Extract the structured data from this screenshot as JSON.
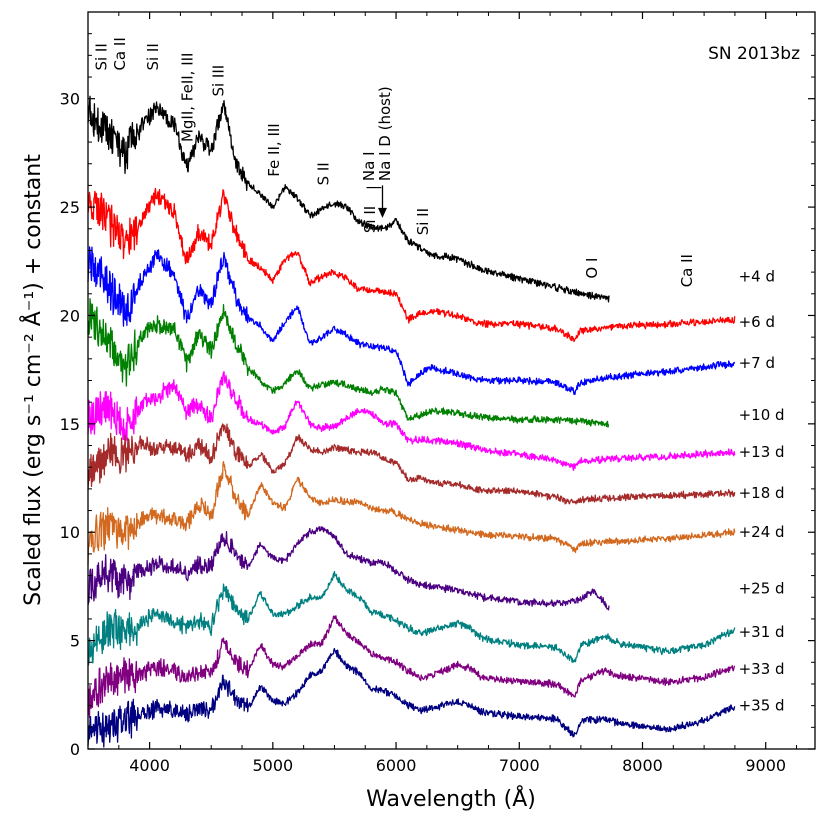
{
  "chart_data": {
    "type": "line",
    "title": "SN 2013bz",
    "xlabel": "Wavelength (Å)",
    "ylabel": "Scaled flux (erg s⁻¹ cm⁻² Å⁻¹) + constant",
    "xlim": [
      3500,
      9400
    ],
    "ylim": [
      0,
      34
    ],
    "xticks": [
      4000,
      5000,
      6000,
      7000,
      8000,
      9000
    ],
    "yticks": [
      0,
      5,
      10,
      15,
      20,
      25,
      30
    ],
    "grid": false,
    "series": [
      {
        "name": "+4 d",
        "color": "#000000",
        "x_range": [
          3500,
          7730
        ],
        "x": [
          3500,
          3650,
          3800,
          3950,
          4050,
          4200,
          4300,
          4400,
          4500,
          4600,
          4700,
          4800,
          4900,
          5000,
          5100,
          5200,
          5300,
          5400,
          5500,
          5600,
          5700,
          5800,
          5900,
          6000,
          6100,
          6200,
          6300,
          6500,
          6700,
          7000,
          7300,
          7500,
          7730
        ],
        "y": [
          29.5,
          28.5,
          27.5,
          28.8,
          29.6,
          28.8,
          26.8,
          28.3,
          27.6,
          29.8,
          27.0,
          26.1,
          25.6,
          25.0,
          25.9,
          25.4,
          24.6,
          24.9,
          25.2,
          25.0,
          24.3,
          24.1,
          24.0,
          24.4,
          23.4,
          23.1,
          22.8,
          22.6,
          22.1,
          21.7,
          21.3,
          21.0,
          20.8
        ]
      },
      {
        "name": "+6 d",
        "color": "#ff0000",
        "x_range": [
          3500,
          8750
        ],
        "x": [
          3500,
          3650,
          3800,
          3950,
          4050,
          4200,
          4300,
          4400,
          4500,
          4600,
          4700,
          4800,
          4900,
          5000,
          5100,
          5200,
          5300,
          5400,
          5500,
          5600,
          5700,
          5800,
          5900,
          6000,
          6100,
          6200,
          6300,
          6500,
          6700,
          7000,
          7300,
          7450,
          7500,
          7800,
          8200,
          8750
        ],
        "y": [
          25.2,
          24.5,
          23.2,
          24.6,
          25.6,
          24.8,
          22.5,
          23.9,
          23.2,
          25.6,
          23.8,
          22.6,
          22.2,
          21.6,
          22.6,
          22.9,
          21.5,
          21.8,
          22.0,
          21.7,
          21.2,
          21.2,
          21.1,
          21.0,
          19.8,
          20.1,
          20.2,
          20.0,
          19.6,
          19.6,
          19.4,
          18.9,
          19.3,
          19.5,
          19.6,
          19.8
        ]
      },
      {
        "name": "+7 d",
        "color": "#0000ff",
        "x_range": [
          3500,
          8750
        ],
        "x": [
          3500,
          3650,
          3800,
          3950,
          4050,
          4200,
          4300,
          4400,
          4500,
          4600,
          4700,
          4800,
          4900,
          5000,
          5100,
          5200,
          5300,
          5400,
          5500,
          5600,
          5700,
          5800,
          5900,
          6000,
          6100,
          6200,
          6300,
          6500,
          6700,
          7000,
          7300,
          7450,
          7500,
          7800,
          8200,
          8750
        ],
        "y": [
          22.5,
          21.5,
          20.0,
          21.8,
          22.7,
          21.9,
          19.8,
          21.2,
          20.5,
          22.8,
          20.8,
          19.9,
          19.5,
          18.8,
          19.7,
          20.4,
          18.7,
          19.0,
          19.4,
          19.1,
          18.7,
          18.6,
          18.5,
          18.4,
          16.8,
          17.4,
          17.6,
          17.3,
          17.0,
          17.0,
          16.9,
          16.5,
          16.9,
          17.2,
          17.4,
          17.8
        ]
      },
      {
        "name": "+10 d",
        "color": "#008000",
        "x_range": [
          3500,
          7730
        ],
        "x": [
          3500,
          3650,
          3800,
          3950,
          4050,
          4200,
          4300,
          4400,
          4500,
          4600,
          4700,
          4800,
          4900,
          5000,
          5100,
          5200,
          5300,
          5400,
          5500,
          5600,
          5700,
          5800,
          5900,
          6000,
          6100,
          6200,
          6300,
          6500,
          6700,
          7000,
          7300,
          7500,
          7730
        ],
        "y": [
          20.0,
          19.0,
          17.5,
          19.2,
          19.6,
          19.4,
          17.8,
          19.1,
          18.4,
          20.1,
          18.7,
          17.6,
          17.0,
          16.5,
          16.9,
          17.5,
          16.6,
          16.8,
          16.9,
          16.8,
          16.6,
          16.4,
          16.6,
          16.4,
          15.2,
          15.4,
          15.6,
          15.5,
          15.3,
          15.2,
          15.2,
          15.1,
          15.0
        ]
      },
      {
        "name": "+13 d",
        "color": "#ff00ff",
        "x_range": [
          3500,
          8750
        ],
        "x": [
          3500,
          3650,
          3800,
          3950,
          4050,
          4200,
          4300,
          4400,
          4500,
          4600,
          4700,
          4800,
          4900,
          5000,
          5100,
          5200,
          5300,
          5400,
          5500,
          5600,
          5700,
          5800,
          5900,
          6000,
          6100,
          6200,
          6300,
          6500,
          6700,
          7000,
          7300,
          7450,
          7500,
          7800,
          8200,
          8750
        ],
        "y": [
          15.2,
          15.8,
          14.7,
          16.0,
          16.2,
          16.8,
          15.6,
          15.9,
          15.2,
          17.3,
          16.2,
          15.2,
          15.0,
          14.6,
          14.9,
          16.1,
          15.0,
          14.8,
          14.9,
          15.3,
          15.6,
          15.5,
          15.0,
          15.0,
          14.2,
          14.3,
          14.2,
          14.1,
          13.8,
          13.6,
          13.3,
          13.0,
          13.3,
          13.4,
          13.5,
          13.7
        ]
      },
      {
        "name": "+18 d",
        "color": "#a52a2a",
        "x_range": [
          3500,
          8750
        ],
        "x": [
          3500,
          3650,
          3800,
          3950,
          4050,
          4200,
          4300,
          4400,
          4500,
          4600,
          4700,
          4800,
          4900,
          5000,
          5100,
          5200,
          5300,
          5400,
          5500,
          5600,
          5700,
          5800,
          5900,
          6000,
          6100,
          6200,
          6300,
          6500,
          6700,
          7000,
          7300,
          7450,
          7500,
          7800,
          8200,
          8750
        ],
        "y": [
          12.5,
          13.5,
          13.6,
          14.2,
          13.8,
          13.9,
          13.6,
          14.0,
          13.4,
          15.0,
          13.7,
          13.0,
          13.6,
          12.8,
          13.2,
          14.4,
          13.8,
          13.7,
          13.9,
          13.8,
          13.7,
          13.7,
          13.4,
          13.2,
          12.4,
          12.5,
          12.3,
          12.2,
          11.9,
          11.9,
          11.6,
          11.3,
          11.5,
          11.6,
          11.7,
          11.8
        ]
      },
      {
        "name": "+24 d",
        "color": "#d2691e",
        "x_range": [
          3500,
          8750
        ],
        "x": [
          3500,
          3650,
          3800,
          3950,
          4050,
          4200,
          4300,
          4400,
          4500,
          4600,
          4700,
          4800,
          4900,
          5000,
          5100,
          5200,
          5300,
          5400,
          5500,
          5600,
          5700,
          5800,
          5900,
          6000,
          6100,
          6200,
          6300,
          6500,
          6700,
          7000,
          7300,
          7450,
          7500,
          7800,
          8200,
          8750
        ],
        "y": [
          9.5,
          10.3,
          10.0,
          10.6,
          10.8,
          10.6,
          10.4,
          11.3,
          10.8,
          13.0,
          11.6,
          10.8,
          12.2,
          11.4,
          11.1,
          12.5,
          11.6,
          11.3,
          11.5,
          11.4,
          11.4,
          11.1,
          11.0,
          10.9,
          10.6,
          10.4,
          10.3,
          10.1,
          9.9,
          9.8,
          9.7,
          9.2,
          9.5,
          9.6,
          9.7,
          10.0
        ]
      },
      {
        "name": "+25 d",
        "color": "#4b0082",
        "x_range": [
          3500,
          7730
        ],
        "x": [
          3500,
          3650,
          3800,
          3950,
          4050,
          4200,
          4300,
          4400,
          4500,
          4600,
          4700,
          4800,
          4900,
          5000,
          5100,
          5200,
          5300,
          5400,
          5500,
          5600,
          5700,
          5800,
          5900,
          6000,
          6100,
          6200,
          6300,
          6500,
          6700,
          7000,
          7300,
          7500,
          7600,
          7730
        ],
        "y": [
          7.5,
          8.2,
          7.8,
          8.3,
          8.5,
          8.4,
          8.0,
          8.5,
          8.4,
          9.8,
          9.0,
          8.4,
          9.5,
          8.8,
          8.7,
          9.5,
          10.0,
          10.2,
          9.8,
          9.0,
          8.8,
          8.6,
          8.6,
          8.2,
          7.8,
          7.6,
          7.5,
          7.3,
          7.0,
          6.8,
          6.7,
          6.9,
          7.3,
          6.5
        ]
      },
      {
        "name": "+31 d",
        "color": "#008080",
        "x_range": [
          3500,
          8750
        ],
        "x": [
          3500,
          3650,
          3800,
          3950,
          4050,
          4200,
          4300,
          4400,
          4500,
          4600,
          4700,
          4800,
          4900,
          5000,
          5100,
          5200,
          5300,
          5400,
          5500,
          5600,
          5700,
          5800,
          5900,
          6000,
          6100,
          6200,
          6300,
          6500,
          6600,
          6700,
          7000,
          7300,
          7450,
          7500,
          7700,
          7800,
          8200,
          8500,
          8750
        ],
        "y": [
          4.6,
          5.4,
          5.4,
          5.8,
          6.3,
          5.9,
          5.6,
          5.9,
          5.6,
          7.4,
          6.4,
          6.0,
          7.2,
          6.2,
          6.2,
          6.6,
          7.0,
          7.0,
          8.1,
          7.3,
          7.0,
          6.3,
          6.2,
          5.9,
          5.6,
          5.3,
          5.5,
          5.8,
          5.6,
          5.1,
          4.8,
          4.7,
          4.0,
          4.8,
          5.2,
          4.9,
          4.5,
          4.8,
          5.5
        ]
      },
      {
        "name": "+33 d",
        "color": "#800080",
        "x_range": [
          3500,
          8750
        ],
        "x": [
          3500,
          3650,
          3800,
          3950,
          4050,
          4200,
          4300,
          4400,
          4500,
          4600,
          4700,
          4800,
          4900,
          5000,
          5100,
          5200,
          5300,
          5400,
          5500,
          5600,
          5700,
          5800,
          5900,
          6000,
          6100,
          6200,
          6300,
          6500,
          6600,
          6700,
          7000,
          7300,
          7450,
          7500,
          7700,
          7800,
          8200,
          8500,
          8750
        ],
        "y": [
          2.3,
          3.0,
          3.3,
          3.5,
          3.8,
          3.6,
          3.3,
          3.6,
          3.4,
          5.0,
          4.0,
          3.6,
          4.8,
          3.9,
          3.8,
          4.3,
          4.8,
          4.9,
          6.1,
          5.3,
          4.9,
          4.4,
          4.2,
          4.0,
          3.6,
          3.3,
          3.4,
          3.9,
          3.7,
          3.3,
          3.1,
          3.0,
          2.4,
          3.2,
          3.6,
          3.4,
          3.1,
          3.3,
          3.8
        ]
      },
      {
        "name": "+35 d",
        "color": "#000080",
        "x_range": [
          3500,
          8750
        ],
        "x": [
          3500,
          3650,
          3800,
          3950,
          4050,
          4200,
          4300,
          4400,
          4500,
          4600,
          4700,
          4800,
          4900,
          5000,
          5100,
          5200,
          5300,
          5400,
          5500,
          5600,
          5700,
          5800,
          5900,
          6000,
          6100,
          6200,
          6300,
          6500,
          6600,
          6700,
          7000,
          7300,
          7450,
          7500,
          7700,
          7800,
          8200,
          8500,
          8750
        ],
        "y": [
          1.2,
          0.8,
          1.4,
          1.6,
          1.9,
          1.8,
          1.6,
          1.9,
          1.8,
          3.2,
          2.2,
          1.9,
          2.9,
          2.2,
          2.1,
          2.6,
          3.4,
          3.6,
          4.6,
          3.8,
          3.5,
          2.8,
          2.7,
          2.4,
          2.0,
          1.8,
          1.9,
          2.2,
          2.0,
          1.7,
          1.5,
          1.4,
          0.6,
          1.3,
          1.4,
          1.2,
          0.9,
          1.3,
          2.0
        ]
      }
    ],
    "phase_labels": [
      {
        "text": "+4 d",
        "y": 21.8
      },
      {
        "text": "+6 d",
        "y": 19.7
      },
      {
        "text": "+7 d",
        "y": 17.8
      },
      {
        "text": "+10 d",
        "y": 15.4
      },
      {
        "text": "+13 d",
        "y": 13.7
      },
      {
        "text": "+18 d",
        "y": 11.8
      },
      {
        "text": "+24 d",
        "y": 10.0
      },
      {
        "text": "+25 d",
        "y": 7.4
      },
      {
        "text": "+31 d",
        "y": 5.4
      },
      {
        "text": "+33 d",
        "y": 3.7
      },
      {
        "text": "+35 d",
        "y": 2.0
      }
    ],
    "line_labels": [
      {
        "text": "Si II",
        "x": 3650,
        "y": 31.3
      },
      {
        "text": "Ca II",
        "x": 3800,
        "y": 31.3
      },
      {
        "text": "Si II",
        "x": 4070,
        "y": 31.3
      },
      {
        "text": "MgII, FeII, III",
        "x": 4350,
        "y": 28.0
      },
      {
        "text": "Si III",
        "x": 4600,
        "y": 30.1
      },
      {
        "text": "Fe II, III",
        "x": 5050,
        "y": 26.4
      },
      {
        "text": "S II",
        "x": 5450,
        "y": 26.0
      },
      {
        "text": "Na I",
        "x": 5820,
        "y": 26.2
      },
      {
        "text": "Na I D (host)",
        "x": 5950,
        "y": 26.2
      },
      {
        "text": "Si II",
        "x": 5830,
        "y": 23.8
      },
      {
        "text": "Si II",
        "x": 6260,
        "y": 23.7
      },
      {
        "text": "O I",
        "x": 7630,
        "y": 21.7
      },
      {
        "text": "Ca II",
        "x": 8400,
        "y": 21.3
      }
    ],
    "annotation_arrow": {
      "x": 5890,
      "y_from": 26.0,
      "y_to": 24.5
    }
  }
}
